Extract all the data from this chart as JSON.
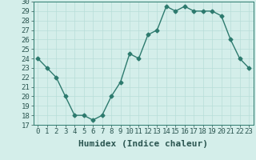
{
  "xlabel": "Humidex (Indice chaleur)",
  "x": [
    0,
    1,
    2,
    3,
    4,
    5,
    6,
    7,
    8,
    9,
    10,
    11,
    12,
    13,
    14,
    15,
    16,
    17,
    18,
    19,
    20,
    21,
    22,
    23
  ],
  "y": [
    24,
    23,
    22,
    20,
    18,
    18,
    17.5,
    18,
    20,
    21.5,
    24.5,
    24,
    26.5,
    27,
    29.5,
    29,
    29.5,
    29,
    29,
    29,
    28.5,
    26,
    24,
    23
  ],
  "line_color": "#2d7a6e",
  "marker": "D",
  "marker_size": 2.5,
  "bg_color": "#d4eeea",
  "grid_color": "#b8ddd8",
  "tick_label_color": "#2a5550",
  "ylim": [
    17,
    30
  ],
  "yticks": [
    17,
    18,
    19,
    20,
    21,
    22,
    23,
    24,
    25,
    26,
    27,
    28,
    29,
    30
  ],
  "xticks": [
    0,
    1,
    2,
    3,
    4,
    5,
    6,
    7,
    8,
    9,
    10,
    11,
    12,
    13,
    14,
    15,
    16,
    17,
    18,
    19,
    20,
    21,
    22,
    23
  ],
  "xtick_labels": [
    "0",
    "1",
    "2",
    "3",
    "4",
    "5",
    "6",
    "7",
    "8",
    "9",
    "10",
    "11",
    "12",
    "13",
    "14",
    "15",
    "16",
    "17",
    "18",
    "19",
    "20",
    "21",
    "22",
    "23"
  ],
  "linewidth": 1.0,
  "xlabel_fontsize": 8,
  "tick_fontsize": 6.5
}
